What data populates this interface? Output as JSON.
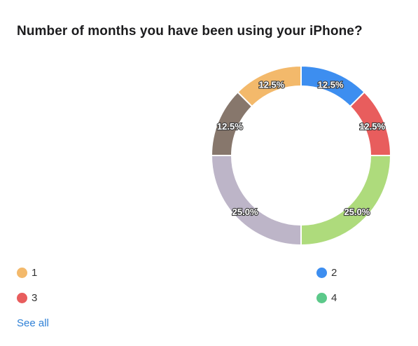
{
  "title": "Number of months you have been using your iPhone?",
  "see_all_label": "See all",
  "legend": [
    {
      "label": "1",
      "color": "#f3b96b"
    },
    {
      "label": "2",
      "color": "#3d8ef0"
    },
    {
      "label": "3",
      "color": "#e85d5d"
    },
    {
      "label": "4",
      "color": "#5cc98a"
    }
  ],
  "chart_data": {
    "type": "pie",
    "style": "donut",
    "title": "Number of months you have been using your iPhone?",
    "slices": [
      {
        "label": "12.5%",
        "value": 12.5,
        "color": "#3d8ef0"
      },
      {
        "label": "12.5%",
        "value": 12.5,
        "color": "#e85d5d"
      },
      {
        "label": "25.0%",
        "value": 25.0,
        "color": "#aedb7c"
      },
      {
        "label": "25.0%",
        "value": 25.0,
        "color": "#bdb5c8"
      },
      {
        "label": "12.5%",
        "value": 12.5,
        "color": "#87776c"
      },
      {
        "label": "12.5%",
        "value": 12.5,
        "color": "#f3b96b"
      }
    ],
    "legend_placement": "bottom"
  }
}
